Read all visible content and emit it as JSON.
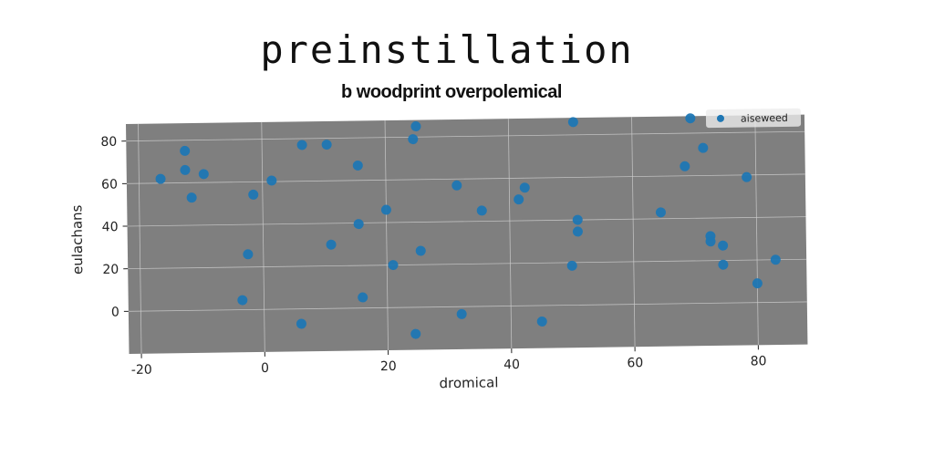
{
  "title": "preinstillation",
  "subtitle": "b woodprint overpolemical",
  "colors": {
    "plot_bg": "#7f7f7f",
    "point": "#1f77b4",
    "grid": "#d0d0d0"
  },
  "chart_data": {
    "type": "scatter",
    "xlabel": "dromical",
    "ylabel": "eulachans",
    "xlim": [
      -22,
      88
    ],
    "ylim": [
      -20,
      88
    ],
    "xticks": [
      -20,
      0,
      20,
      40,
      60,
      80
    ],
    "yticks": [
      0,
      20,
      40,
      60,
      80
    ],
    "grid": true,
    "legend_position": "top-right",
    "series": [
      {
        "name": "aiseweed",
        "points": [
          [
            -16.5,
            62
          ],
          [
            -12.5,
            75
          ],
          [
            -12.5,
            66
          ],
          [
            -11.5,
            53
          ],
          [
            -9.5,
            64
          ],
          [
            -3.5,
            4.5
          ],
          [
            -2.5,
            26
          ],
          [
            -1.5,
            54
          ],
          [
            1.5,
            60.5
          ],
          [
            6,
            -7
          ],
          [
            6.5,
            77
          ],
          [
            10.5,
            77
          ],
          [
            11,
            30
          ],
          [
            15.5,
            67
          ],
          [
            15.5,
            39.5
          ],
          [
            16,
            5
          ],
          [
            20,
            46
          ],
          [
            21,
            20
          ],
          [
            24.5,
            -12.5
          ],
          [
            24.5,
            79
          ],
          [
            25,
            85
          ],
          [
            25.5,
            26.5
          ],
          [
            31.5,
            57
          ],
          [
            32,
            -3.5
          ],
          [
            35.5,
            45
          ],
          [
            41.5,
            50
          ],
          [
            42.5,
            55.5
          ],
          [
            45,
            -7.5
          ],
          [
            50,
            18.5
          ],
          [
            50.5,
            86
          ],
          [
            51,
            40
          ],
          [
            51,
            34.5
          ],
          [
            64.5,
            43
          ],
          [
            68.5,
            64.5
          ],
          [
            69.5,
            87
          ],
          [
            71.5,
            73
          ],
          [
            72.5,
            31.5
          ],
          [
            72.5,
            29
          ],
          [
            74.5,
            27
          ],
          [
            74.5,
            18
          ],
          [
            78.5,
            59
          ],
          [
            80,
            9
          ],
          [
            83,
            20
          ]
        ]
      }
    ]
  }
}
